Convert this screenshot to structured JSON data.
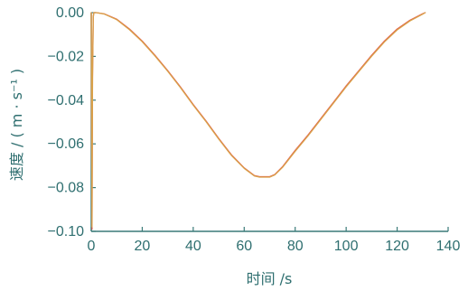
{
  "chart_data": {
    "type": "line",
    "xlabel": "时间 /s",
    "ylabel": "速度 / ( m · s⁻¹ )",
    "xlim": [
      0,
      140
    ],
    "ylim": [
      -0.1,
      0.0
    ],
    "x_ticks": [
      0,
      20,
      40,
      60,
      80,
      100,
      120,
      140
    ],
    "x_tick_labels": [
      "0",
      "20",
      "40",
      "60",
      "80",
      "100",
      "120",
      "140"
    ],
    "y_ticks": [
      0.0,
      -0.02,
      -0.04,
      -0.06,
      -0.08,
      -0.1
    ],
    "y_tick_labels": [
      "0.00",
      "−0.02",
      "−0.04",
      "−0.06",
      "−0.08",
      "−0.10"
    ],
    "grid": false,
    "series": [
      {
        "color": "#e05a48",
        "x": [
          0,
          0.3,
          0.5,
          0.8,
          1,
          2,
          5,
          10,
          15,
          20,
          25,
          30,
          35,
          40,
          45,
          50,
          55,
          60,
          64,
          66,
          70,
          72,
          75,
          80,
          85,
          90,
          95,
          100,
          105,
          110,
          115,
          120,
          125,
          130,
          131
        ],
        "y": [
          0,
          -0.099,
          -0.03,
          -0.002,
          0,
          0,
          -0.0005,
          -0.003,
          -0.0075,
          -0.013,
          -0.0195,
          -0.0265,
          -0.034,
          -0.042,
          -0.0495,
          -0.0575,
          -0.065,
          -0.071,
          -0.0745,
          -0.075,
          -0.075,
          -0.074,
          -0.0705,
          -0.063,
          -0.056,
          -0.0485,
          -0.041,
          -0.0335,
          -0.0265,
          -0.0195,
          -0.013,
          -0.0075,
          -0.0035,
          -0.0005,
          0
        ]
      },
      {
        "color": "#d9a24a",
        "x": [
          0,
          0.3,
          0.5,
          0.8,
          1,
          2,
          5,
          10,
          15,
          20,
          25,
          30,
          35,
          40,
          45,
          50,
          55,
          60,
          64,
          66,
          70,
          72,
          75,
          80,
          85,
          90,
          95,
          100,
          105,
          110,
          115,
          120,
          125,
          130,
          131
        ],
        "y": [
          0,
          -0.098,
          -0.029,
          -0.002,
          0,
          0,
          -0.0006,
          -0.0032,
          -0.0078,
          -0.0133,
          -0.0198,
          -0.0268,
          -0.0343,
          -0.0423,
          -0.0498,
          -0.0578,
          -0.0653,
          -0.0712,
          -0.0747,
          -0.0752,
          -0.0752,
          -0.0742,
          -0.0708,
          -0.0634,
          -0.0564,
          -0.0489,
          -0.0414,
          -0.0339,
          -0.0269,
          -0.0199,
          -0.0134,
          -0.0079,
          -0.0038,
          -0.0007,
          0
        ]
      }
    ]
  }
}
